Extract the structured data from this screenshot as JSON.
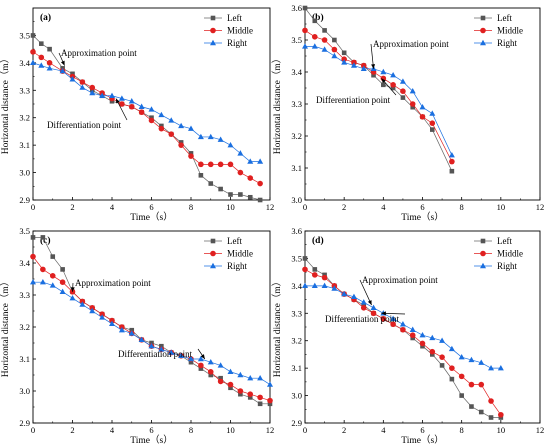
{
  "chart_data": [
    {
      "type": "line",
      "panel": "(a)",
      "xlabel": "Time（s）",
      "ylabel": "Horizontal distance（m）",
      "xlim": [
        0,
        12
      ],
      "ylim": [
        2.9,
        3.6
      ],
      "xticks": [
        "0",
        "2",
        "4",
        "6",
        "8",
        "10",
        "12"
      ],
      "yticks": [
        "2.9",
        "3.0",
        "3.1",
        "3.2",
        "3.3",
        "3.4",
        "3.5"
      ],
      "legend_position": "top-right",
      "series": [
        {
          "name": "Left",
          "marker": "square",
          "color": "#555555",
          "x": [
            0,
            0.42,
            0.84,
            1.5,
            2,
            2.5,
            3,
            3.5,
            4,
            4.5,
            5,
            5.5,
            6,
            6.5,
            7,
            7.5,
            8,
            8.5,
            9,
            9.5,
            10,
            10.5,
            11,
            11.5
          ],
          "y": [
            3.5,
            3.47,
            3.45,
            3.38,
            3.36,
            3.33,
            3.3,
            3.28,
            3.26,
            3.25,
            3.24,
            3.22,
            3.2,
            3.17,
            3.14,
            3.11,
            3.07,
            2.99,
            2.96,
            2.94,
            2.92,
            2.92,
            2.91,
            2.9
          ]
        },
        {
          "name": "Middle",
          "marker": "circle",
          "color": "#e02020",
          "x": [
            0,
            0.42,
            0.84,
            1.5,
            2,
            2.5,
            3,
            3.5,
            4,
            4.5,
            5,
            5.5,
            6,
            6.5,
            7,
            7.5,
            8,
            8.5,
            9,
            9.5,
            10,
            10.5,
            11,
            11.5
          ],
          "y": [
            3.44,
            3.42,
            3.4,
            3.37,
            3.35,
            3.33,
            3.31,
            3.29,
            3.27,
            3.25,
            3.24,
            3.22,
            3.19,
            3.16,
            3.14,
            3.1,
            3.06,
            3.03,
            3.03,
            3.03,
            3.03,
            3.0,
            2.98,
            2.96
          ]
        },
        {
          "name": "Right",
          "marker": "triangle",
          "color": "#1a6fe0",
          "x": [
            0,
            0.42,
            0.84,
            1.5,
            2,
            2.5,
            3,
            3.5,
            4,
            4.5,
            5,
            5.5,
            6,
            6.5,
            7,
            7.5,
            8,
            8.5,
            9,
            9.5,
            10,
            10.5,
            11,
            11.5
          ],
          "y": [
            3.4,
            3.39,
            3.38,
            3.37,
            3.34,
            3.31,
            3.29,
            3.28,
            3.28,
            3.27,
            3.26,
            3.24,
            3.23,
            3.21,
            3.19,
            3.17,
            3.16,
            3.13,
            3.13,
            3.12,
            3.1,
            3.07,
            3.04,
            3.04
          ]
        }
      ],
      "annotations": [
        {
          "text": "Approximation point",
          "x": 1.6,
          "y": 3.39
        },
        {
          "text": "Differentiation point",
          "x": 4.2,
          "y": 3.27
        }
      ]
    },
    {
      "type": "line",
      "panel": "(b)",
      "xlabel": "Time（s）",
      "ylabel": "Horizontal distance（m）",
      "xlim": [
        0,
        12
      ],
      "ylim": [
        3.0,
        3.6
      ],
      "xticks": [
        "0",
        "2",
        "4",
        "6",
        "8",
        "10",
        "12"
      ],
      "yticks": [
        "3.0",
        "3.1",
        "3.2",
        "3.3",
        "3.4",
        "3.5",
        "3.6"
      ],
      "legend_position": "top-right",
      "series": [
        {
          "name": "Left",
          "marker": "square",
          "color": "#555555",
          "x": [
            0,
            0.5,
            1,
            1.5,
            2,
            2.5,
            3,
            3.5,
            4,
            4.5,
            5,
            5.5,
            6,
            6.5,
            7.5
          ],
          "y": [
            3.6,
            3.56,
            3.53,
            3.5,
            3.46,
            3.43,
            3.42,
            3.39,
            3.36,
            3.35,
            3.32,
            3.29,
            3.26,
            3.22,
            3.09
          ]
        },
        {
          "name": "Middle",
          "marker": "circle",
          "color": "#e02020",
          "x": [
            0,
            0.5,
            1,
            1.5,
            2,
            2.5,
            3,
            3.5,
            4,
            4.5,
            5,
            5.5,
            6,
            6.5,
            7.5
          ],
          "y": [
            3.53,
            3.51,
            3.5,
            3.47,
            3.44,
            3.43,
            3.42,
            3.4,
            3.38,
            3.36,
            3.34,
            3.3,
            3.26,
            3.24,
            3.12
          ]
        },
        {
          "name": "Right",
          "marker": "triangle",
          "color": "#1a6fe0",
          "x": [
            0,
            0.5,
            1,
            1.5,
            2,
            2.5,
            3,
            3.5,
            4,
            4.5,
            5,
            5.5,
            6,
            6.5,
            7.5
          ],
          "y": [
            3.48,
            3.48,
            3.47,
            3.45,
            3.43,
            3.42,
            3.41,
            3.41,
            3.4,
            3.39,
            3.37,
            3.34,
            3.29,
            3.27,
            3.14
          ]
        }
      ],
      "annotations": [
        {
          "text": "Approximation point",
          "x": 3.5,
          "y": 3.41
        },
        {
          "text": "Differentiation point",
          "x": 3.9,
          "y": 3.38
        }
      ]
    },
    {
      "type": "line",
      "panel": "(c)",
      "xlabel": "Time（s）",
      "ylabel": "Horizontal distance（m）",
      "xlim": [
        0,
        12
      ],
      "ylim": [
        2.9,
        3.5
      ],
      "xticks": [
        "0",
        "2",
        "4",
        "6",
        "8",
        "10",
        "12"
      ],
      "yticks": [
        "2.9",
        "3.0",
        "3.1",
        "3.2",
        "3.3",
        "3.4",
        "3.5"
      ],
      "legend_position": "top-right",
      "series": [
        {
          "name": "Left",
          "marker": "square",
          "color": "#555555",
          "x": [
            0,
            0.5,
            1,
            1.5,
            2,
            2.5,
            3,
            3.5,
            4,
            4.5,
            5,
            5.5,
            6,
            6.5,
            7,
            7.5,
            8,
            8.5,
            9,
            9.5,
            10,
            10.5,
            11,
            11.5,
            12
          ],
          "y": [
            3.48,
            3.48,
            3.42,
            3.38,
            3.31,
            3.28,
            3.26,
            3.24,
            3.22,
            3.2,
            3.19,
            3.16,
            3.15,
            3.14,
            3.12,
            3.11,
            3.09,
            3.07,
            3.05,
            3.04,
            3.01,
            2.99,
            2.98,
            2.96,
            2.96
          ]
        },
        {
          "name": "Middle",
          "marker": "circle",
          "color": "#e02020",
          "x": [
            0,
            0.5,
            1,
            1.5,
            2,
            2.5,
            3,
            3.5,
            4,
            4.5,
            5,
            5.5,
            6,
            6.5,
            7,
            7.5,
            8,
            8.5,
            9,
            9.5,
            10,
            10.5,
            11,
            11.5,
            12
          ],
          "y": [
            3.42,
            3.38,
            3.36,
            3.34,
            3.31,
            3.28,
            3.26,
            3.24,
            3.22,
            3.2,
            3.18,
            3.16,
            3.14,
            3.13,
            3.12,
            3.11,
            3.1,
            3.08,
            3.06,
            3.03,
            3.02,
            3.0,
            2.99,
            2.98,
            2.97
          ]
        },
        {
          "name": "Right",
          "marker": "triangle",
          "color": "#1a6fe0",
          "x": [
            0,
            0.5,
            1,
            1.5,
            2,
            2.5,
            3,
            3.5,
            4,
            4.5,
            5,
            5.5,
            6,
            6.5,
            7,
            7.5,
            8,
            8.5,
            9,
            9.5,
            10,
            10.5,
            11,
            11.5,
            12
          ],
          "y": [
            3.34,
            3.34,
            3.33,
            3.31,
            3.29,
            3.27,
            3.25,
            3.23,
            3.21,
            3.19,
            3.18,
            3.16,
            3.14,
            3.13,
            3.12,
            3.11,
            3.1,
            3.1,
            3.09,
            3.08,
            3.06,
            3.05,
            3.04,
            3.04,
            3.02
          ]
        }
      ],
      "annotations": [
        {
          "text": "Approximation point",
          "x": 2.0,
          "y": 3.31
        },
        {
          "text": "Differentiation point",
          "x": 8.7,
          "y": 3.1
        }
      ]
    },
    {
      "type": "line",
      "panel": "(d)",
      "xlabel": "Time（s）",
      "ylabel": "Horizontal distance（m）",
      "xlim": [
        0,
        12
      ],
      "ylim": [
        2.9,
        3.6
      ],
      "xticks": [
        "0",
        "2",
        "4",
        "6",
        "8",
        "10",
        "12"
      ],
      "yticks": [
        "2.9",
        "3.0",
        "3.1",
        "3.2",
        "3.3",
        "3.4",
        "3.5",
        "3.6"
      ],
      "legend_position": "top-right",
      "series": [
        {
          "name": "Left",
          "marker": "square",
          "color": "#555555",
          "x": [
            0,
            0.5,
            1,
            1.5,
            2,
            2.5,
            3,
            3.5,
            4,
            4.5,
            5,
            5.5,
            6,
            6.5,
            7,
            7.5,
            8,
            8.5,
            9,
            9.5,
            10
          ],
          "y": [
            3.5,
            3.46,
            3.44,
            3.4,
            3.37,
            3.35,
            3.33,
            3.3,
            3.28,
            3.26,
            3.24,
            3.21,
            3.18,
            3.15,
            3.11,
            3.06,
            3.0,
            2.96,
            2.94,
            2.92,
            2.92
          ]
        },
        {
          "name": "Middle",
          "marker": "circle",
          "color": "#e02020",
          "x": [
            0,
            0.5,
            1,
            1.5,
            2,
            2.5,
            3,
            3.5,
            4,
            4.5,
            5,
            5.5,
            6,
            6.5,
            7,
            7.5,
            8,
            8.5,
            9,
            9.5,
            10
          ],
          "y": [
            3.46,
            3.44,
            3.43,
            3.4,
            3.37,
            3.35,
            3.32,
            3.3,
            3.28,
            3.26,
            3.24,
            3.22,
            3.19,
            3.16,
            3.14,
            3.1,
            3.07,
            3.04,
            3.04,
            2.98,
            2.93
          ]
        },
        {
          "name": "Right",
          "marker": "triangle",
          "color": "#1a6fe0",
          "x": [
            0,
            0.5,
            1,
            1.5,
            2,
            2.5,
            3,
            3.5,
            4,
            4.5,
            5,
            5.5,
            6,
            6.5,
            7,
            7.5,
            8,
            8.5,
            9,
            9.5,
            10
          ],
          "y": [
            3.4,
            3.4,
            3.4,
            3.39,
            3.37,
            3.36,
            3.34,
            3.32,
            3.3,
            3.28,
            3.26,
            3.24,
            3.22,
            3.21,
            3.2,
            3.17,
            3.14,
            3.13,
            3.12,
            3.1,
            3.1
          ]
        }
      ],
      "annotations": [
        {
          "text": "Approximation point",
          "x": 3.4,
          "y": 3.33
        },
        {
          "text": "Differentiation point",
          "x": 3.9,
          "y": 3.3
        }
      ]
    }
  ]
}
